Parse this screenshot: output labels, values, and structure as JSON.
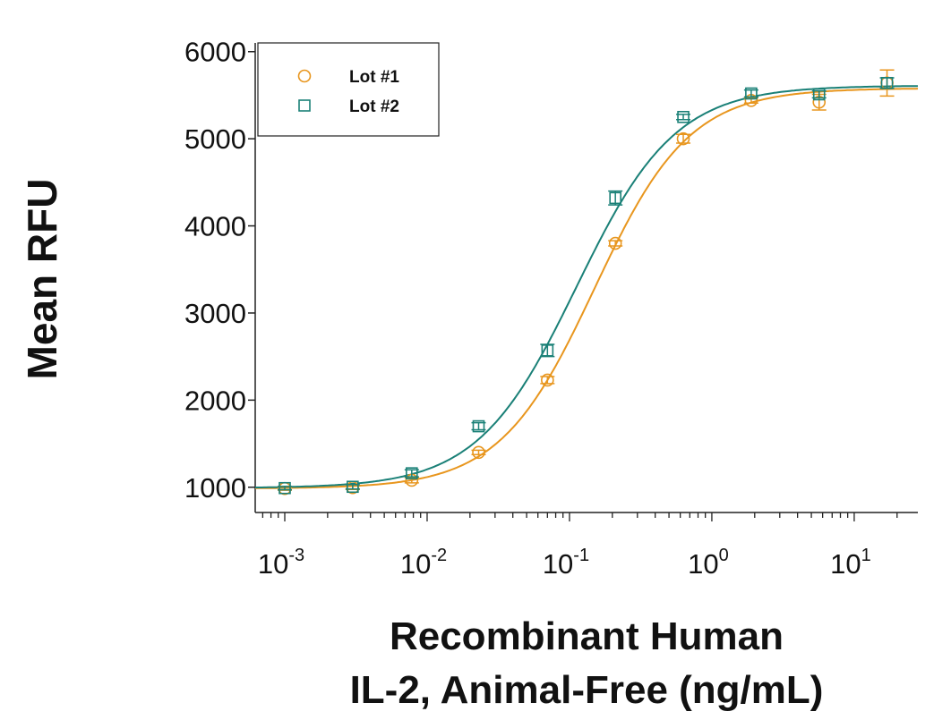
{
  "chart_data": {
    "type": "scatter",
    "title": "",
    "xlabel_line1": "Recombinant Human",
    "xlabel_line2": "IL-2, Animal-Free (ng/mL)",
    "ylabel": "Mean RFU",
    "xscale": "log",
    "xlim": [
      0.00062,
      28
    ],
    "ylim": [
      710,
      6100
    ],
    "yticks": [
      1000,
      2000,
      3000,
      4000,
      5000,
      6000
    ],
    "xticks": [
      0.001,
      0.01,
      0.1,
      1,
      10
    ],
    "xtick_exponents": [
      "-3",
      "-2",
      "-1",
      "0",
      "1"
    ],
    "grid": false,
    "legend_position": "top-left",
    "x": [
      0.001,
      0.003,
      0.0078,
      0.023,
      0.07,
      0.21,
      0.63,
      1.89,
      5.67,
      17
    ],
    "series": [
      {
        "name": "Lot #1",
        "marker": "circle",
        "color": "#E8961E",
        "values": [
          985,
          995,
          1080,
          1400,
          2230,
          3800,
          5000,
          5440,
          5420,
          5640
        ],
        "errors": [
          20,
          20,
          30,
          25,
          40,
          30,
          50,
          30,
          90,
          150
        ]
      },
      {
        "name": "Lot #2",
        "marker": "square",
        "color": "#1A8077",
        "values": [
          990,
          1005,
          1160,
          1700,
          2570,
          4320,
          5250,
          5520,
          5510,
          5640
        ],
        "errors": [
          20,
          25,
          40,
          40,
          70,
          80,
          30,
          40,
          40,
          60
        ]
      }
    ]
  }
}
